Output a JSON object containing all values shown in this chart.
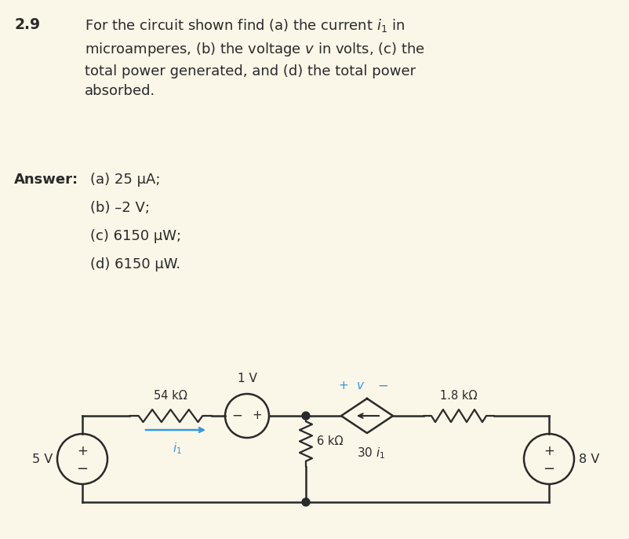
{
  "bg_color": "#faf6e8",
  "title_num": "2.9",
  "title_text": "For the circuit shown find (a) the current $i_1$ in\nmicroamperes, (b) the voltage $v$ in volts, (c) the\ntotal power generated, and (d) the total power\nabsorbed.",
  "answer_label": "Answer:",
  "answers": [
    "(a) 25 μA;",
    "(b) –2 V;",
    "(c) 6150 μW;",
    "(d) 6150 μW."
  ],
  "circuit": {
    "left_source": "5 V",
    "resistor1": "54 kΩ",
    "volt_source2": "1 V",
    "dependent_current": "30 $i_1$",
    "resistor2": "6 kΩ",
    "resistor3": "1.8 kΩ",
    "right_source": "8 V",
    "current_label": "$i_1$",
    "voltage_label": "$v$"
  },
  "text_color": "#2a2a2a",
  "blue_color": "#3399dd",
  "wire_color": "#2a2a2a",
  "component_color": "#2a2a2a",
  "figw": 8.02,
  "figh": 6.87,
  "dpi": 100
}
